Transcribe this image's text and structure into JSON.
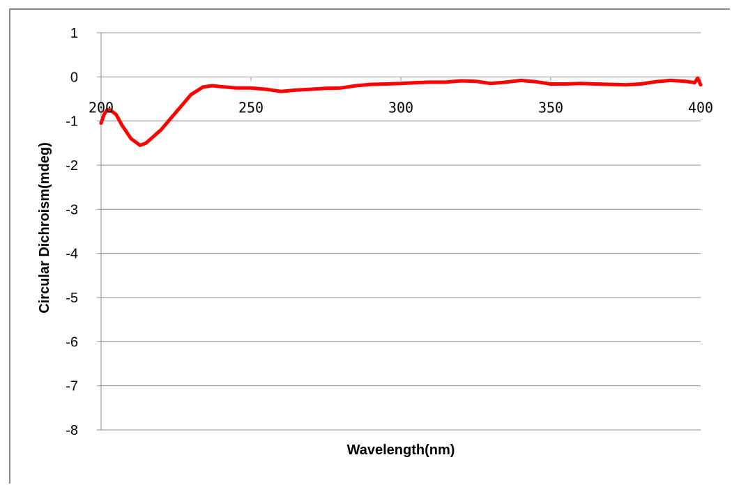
{
  "chart_data": {
    "type": "line",
    "title": "",
    "xlabel": "Wavelength(nm)",
    "ylabel": "Circular Dichroism(mdeg)",
    "xlim": [
      200,
      400
    ],
    "ylim": [
      -8,
      1
    ],
    "x_ticks": [
      "200",
      "250",
      "300",
      "350",
      "400"
    ],
    "y_ticks": [
      "1",
      "0",
      "-1",
      "-2",
      "-3",
      "-4",
      "-5",
      "-6",
      "-7",
      "-8"
    ],
    "grid": true,
    "legend": "none",
    "series": [
      {
        "color": "#ff0000",
        "x": [
          200,
          201,
          202,
          203,
          205,
          207,
          210,
          213,
          215,
          220,
          225,
          230,
          234,
          237,
          240,
          245,
          250,
          255,
          260,
          265,
          270,
          275,
          280,
          285,
          290,
          295,
          300,
          305,
          310,
          315,
          320,
          325,
          330,
          335,
          340,
          345,
          350,
          355,
          360,
          365,
          370,
          375,
          380,
          385,
          390,
          395,
          398,
          399,
          400
        ],
        "y": [
          -1.05,
          -0.85,
          -0.75,
          -0.75,
          -0.85,
          -1.1,
          -1.4,
          -1.55,
          -1.5,
          -1.2,
          -0.8,
          -0.4,
          -0.23,
          -0.2,
          -0.22,
          -0.25,
          -0.25,
          -0.28,
          -0.33,
          -0.3,
          -0.28,
          -0.26,
          -0.25,
          -0.2,
          -0.17,
          -0.16,
          -0.15,
          -0.13,
          -0.12,
          -0.12,
          -0.09,
          -0.1,
          -0.15,
          -0.12,
          -0.08,
          -0.11,
          -0.16,
          -0.16,
          -0.15,
          -0.16,
          -0.17,
          -0.18,
          -0.16,
          -0.11,
          -0.08,
          -0.1,
          -0.13,
          -0.03,
          -0.18
        ]
      }
    ]
  }
}
